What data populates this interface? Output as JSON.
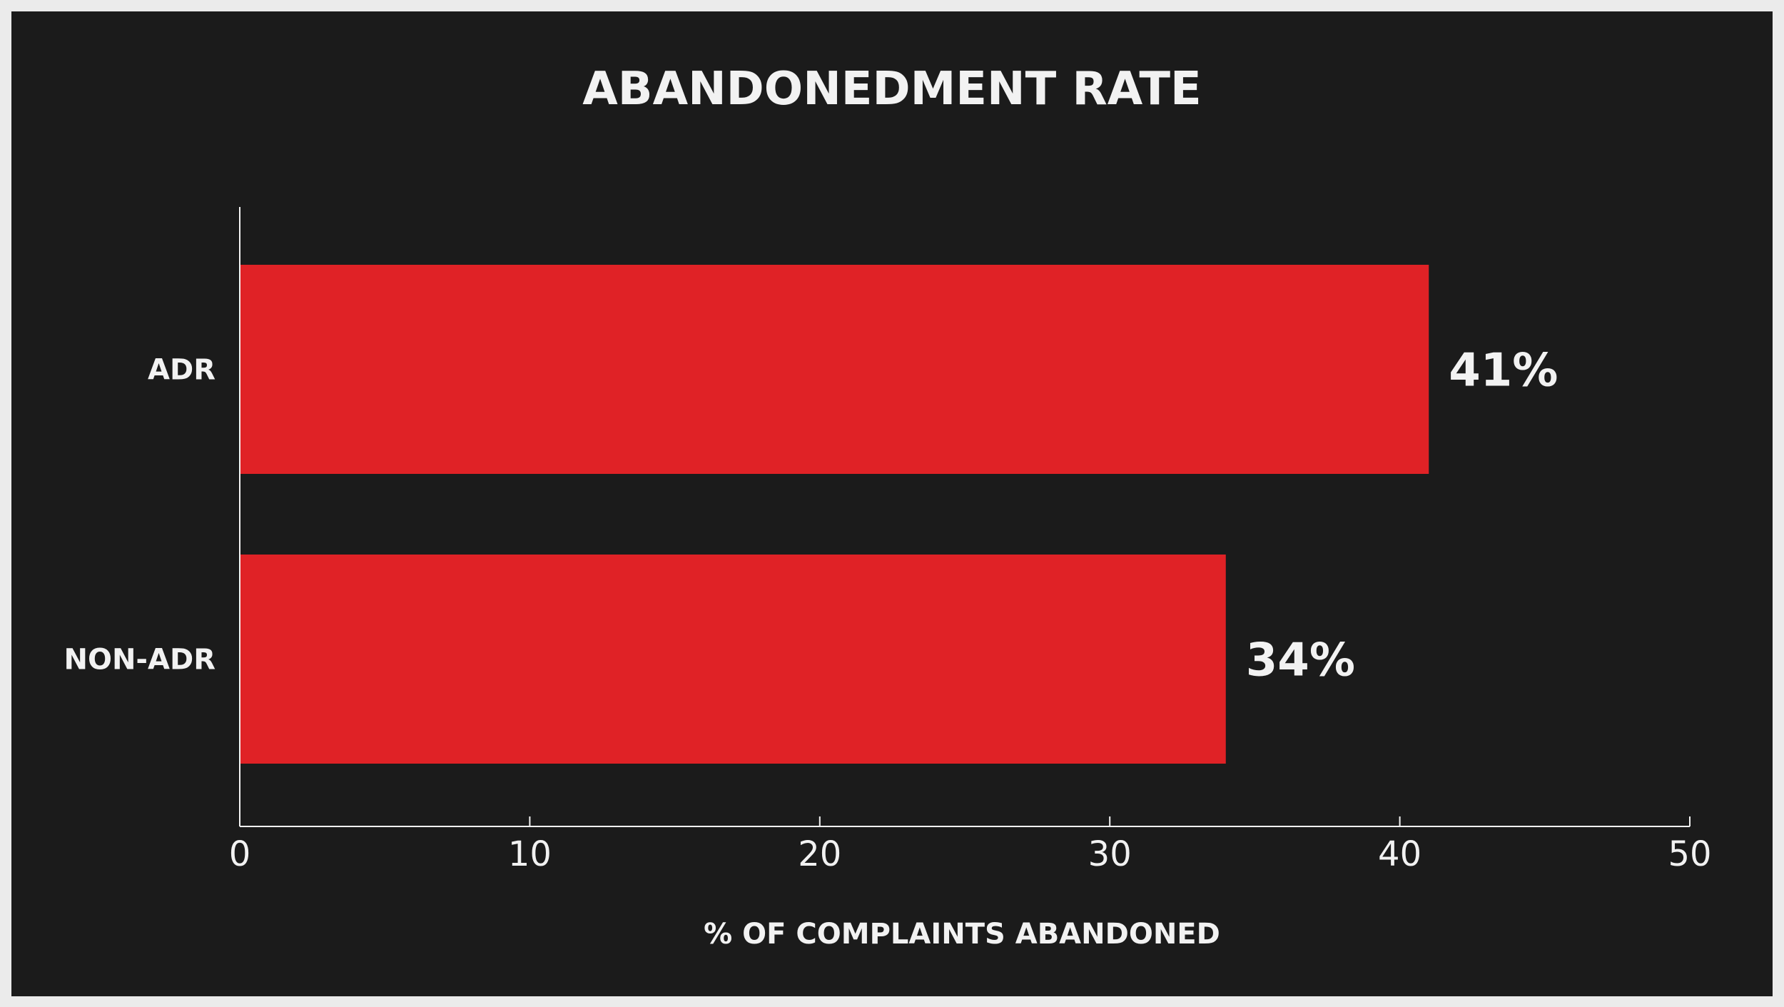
{
  "chart_data": {
    "type": "bar",
    "orientation": "horizontal",
    "title": "ABANDONEDMENT RATE",
    "xlabel": "% OF COMPLAINTS ABANDONED",
    "ylabel": "",
    "categories": [
      "ADR",
      "NON-ADR"
    ],
    "values": [
      41,
      34
    ],
    "value_labels": [
      "41%",
      "34%"
    ],
    "xlim": [
      0,
      50
    ],
    "xticks": [
      0,
      10,
      20,
      30,
      40,
      50
    ],
    "xtick_labels": [
      "0",
      "10",
      "20",
      "30",
      "40",
      "50"
    ],
    "grid": false,
    "legend": "none",
    "colors": {
      "bar": "#e02226",
      "background": "#1b1b1b",
      "frame": "#ebebeb",
      "text": "#f2f2f2",
      "axis": "#f2f2f2"
    }
  }
}
